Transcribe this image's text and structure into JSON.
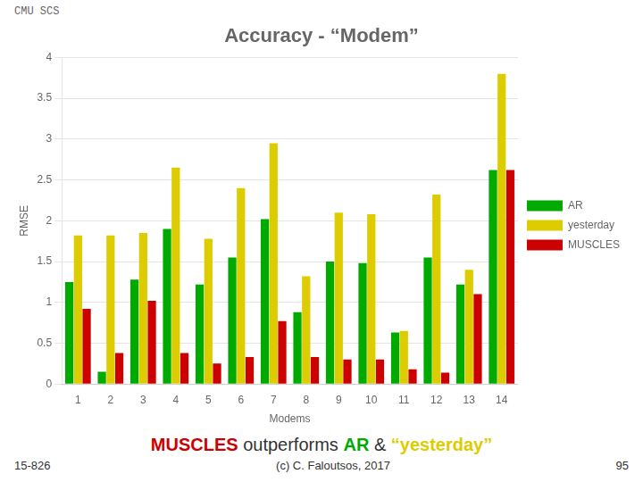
{
  "chart_data": {
    "type": "bar",
    "title": "Accuracy - “Modem”",
    "subtitle": "MUSCLES outperforms AR & “yesterday”",
    "annotations": [
      "CMU SCS",
      "15-826",
      "(c) C. Faloutsos, 2017",
      "95"
    ],
    "xlabel": "Modems",
    "ylabel": "RMSE",
    "categories": [
      1,
      2,
      3,
      4,
      5,
      6,
      7,
      8,
      9,
      10,
      11,
      12,
      13,
      14
    ],
    "series": [
      {
        "name": "AR",
        "color": "#00aa00",
        "values": [
          1.25,
          0.15,
          1.28,
          1.9,
          1.22,
          1.55,
          2.02,
          0.88,
          1.5,
          1.48,
          0.63,
          1.55,
          1.22,
          2.62
        ]
      },
      {
        "name": "yesterday",
        "color": "#ddcc00",
        "values": [
          1.82,
          1.82,
          1.85,
          2.65,
          1.78,
          2.4,
          2.95,
          1.32,
          2.1,
          2.08,
          0.65,
          2.32,
          1.4,
          3.8
        ]
      },
      {
        "name": "MUSCLES",
        "color": "#cc0000",
        "values": [
          0.92,
          0.38,
          1.02,
          0.38,
          0.25,
          0.33,
          0.77,
          0.33,
          0.3,
          0.3,
          0.18,
          0.14,
          1.1,
          2.62
        ]
      }
    ],
    "ylim": [
      0,
      4
    ],
    "yticks": [
      0,
      0.5,
      1,
      1.5,
      2,
      2.5,
      3,
      3.5,
      4
    ],
    "grid": true,
    "legend": "right"
  }
}
